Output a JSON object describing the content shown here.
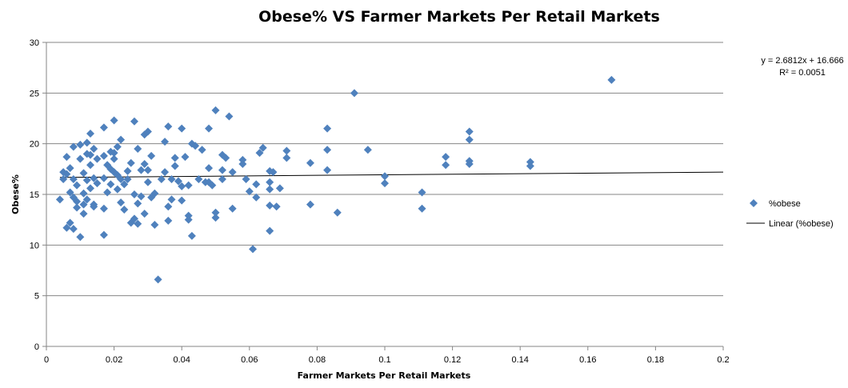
{
  "chart_data": {
    "type": "scatter",
    "title": "Obese% VS Farmer Markets Per Retail Markets",
    "xlabel": "Farmer Markets Per Retail Markets",
    "ylabel": "Obese%",
    "xlim": [
      0,
      0.2
    ],
    "ylim": [
      0,
      30
    ],
    "x_ticks": [
      "0",
      "0.02",
      "0.04",
      "0.06",
      "0.08",
      "0.1",
      "0.12",
      "0.14",
      "0.16",
      "0.18",
      "0.2"
    ],
    "y_ticks": [
      "0",
      "5",
      "10",
      "15",
      "20",
      "25",
      "30"
    ],
    "grid": "horizontal",
    "legend_position": "right",
    "marker_color": "#4F81BD",
    "trendline_color": "#000000",
    "trendline": {
      "name": "Linear (%obese)",
      "slope": 2.6812,
      "intercept": 16.666,
      "equation": "y = 2.6812x + 16.666",
      "r2": "R² = 0.0051"
    },
    "series": [
      {
        "name": "%obese",
        "points": [
          [
            0.004,
            14.5
          ],
          [
            0.005,
            16.5
          ],
          [
            0.005,
            17.2
          ],
          [
            0.006,
            18.7
          ],
          [
            0.006,
            11.7
          ],
          [
            0.006,
            17.0
          ],
          [
            0.007,
            17.6
          ],
          [
            0.007,
            15.2
          ],
          [
            0.007,
            12.2
          ],
          [
            0.008,
            11.6
          ],
          [
            0.008,
            14.7
          ],
          [
            0.008,
            19.7
          ],
          [
            0.008,
            16.5
          ],
          [
            0.009,
            15.9
          ],
          [
            0.009,
            14.3
          ],
          [
            0.009,
            13.7
          ],
          [
            0.01,
            10.8
          ],
          [
            0.01,
            18.5
          ],
          [
            0.01,
            19.9
          ],
          [
            0.011,
            13.1
          ],
          [
            0.011,
            14.0
          ],
          [
            0.011,
            15.1
          ],
          [
            0.011,
            17.1
          ],
          [
            0.012,
            20.1
          ],
          [
            0.012,
            19.0
          ],
          [
            0.012,
            16.4
          ],
          [
            0.012,
            14.5
          ],
          [
            0.013,
            18.9
          ],
          [
            0.013,
            15.6
          ],
          [
            0.013,
            17.9
          ],
          [
            0.013,
            21.0
          ],
          [
            0.014,
            19.5
          ],
          [
            0.014,
            16.6
          ],
          [
            0.014,
            14.0
          ],
          [
            0.014,
            13.8
          ],
          [
            0.015,
            18.5
          ],
          [
            0.015,
            16.1
          ],
          [
            0.017,
            21.6
          ],
          [
            0.017,
            18.8
          ],
          [
            0.017,
            16.6
          ],
          [
            0.017,
            13.6
          ],
          [
            0.017,
            11.0
          ],
          [
            0.018,
            17.9
          ],
          [
            0.018,
            15.2
          ],
          [
            0.019,
            19.2
          ],
          [
            0.019,
            17.5
          ],
          [
            0.019,
            16.0
          ],
          [
            0.02,
            22.3
          ],
          [
            0.02,
            19.1
          ],
          [
            0.02,
            18.5
          ],
          [
            0.02,
            17.2
          ],
          [
            0.021,
            16.9
          ],
          [
            0.021,
            15.5
          ],
          [
            0.021,
            19.7
          ],
          [
            0.022,
            20.4
          ],
          [
            0.022,
            16.5
          ],
          [
            0.022,
            14.2
          ],
          [
            0.023,
            13.5
          ],
          [
            0.023,
            16.0
          ],
          [
            0.024,
            17.3
          ],
          [
            0.024,
            16.5
          ],
          [
            0.025,
            18.1
          ],
          [
            0.025,
            12.2
          ],
          [
            0.026,
            22.2
          ],
          [
            0.026,
            15.0
          ],
          [
            0.026,
            12.6
          ],
          [
            0.027,
            19.5
          ],
          [
            0.027,
            14.1
          ],
          [
            0.027,
            12.1
          ],
          [
            0.028,
            17.4
          ],
          [
            0.028,
            14.8
          ],
          [
            0.029,
            18.0
          ],
          [
            0.029,
            20.9
          ],
          [
            0.029,
            13.1
          ],
          [
            0.03,
            21.2
          ],
          [
            0.03,
            17.4
          ],
          [
            0.03,
            16.2
          ],
          [
            0.031,
            18.8
          ],
          [
            0.031,
            14.7
          ],
          [
            0.032,
            12.0
          ],
          [
            0.032,
            15.1
          ],
          [
            0.033,
            6.6
          ],
          [
            0.034,
            16.5
          ],
          [
            0.035,
            20.2
          ],
          [
            0.035,
            17.2
          ],
          [
            0.036,
            21.7
          ],
          [
            0.036,
            13.8
          ],
          [
            0.036,
            12.4
          ],
          [
            0.037,
            16.5
          ],
          [
            0.037,
            14.5
          ],
          [
            0.038,
            18.6
          ],
          [
            0.038,
            17.8
          ],
          [
            0.039,
            16.3
          ],
          [
            0.04,
            21.5
          ],
          [
            0.04,
            15.8
          ],
          [
            0.04,
            14.4
          ],
          [
            0.041,
            18.7
          ],
          [
            0.042,
            12.9
          ],
          [
            0.042,
            12.5
          ],
          [
            0.042,
            15.9
          ],
          [
            0.043,
            10.9
          ],
          [
            0.043,
            20.0
          ],
          [
            0.044,
            19.8
          ],
          [
            0.045,
            16.5
          ],
          [
            0.046,
            19.4
          ],
          [
            0.047,
            16.2
          ],
          [
            0.048,
            21.5
          ],
          [
            0.048,
            17.6
          ],
          [
            0.048,
            16.2
          ],
          [
            0.049,
            15.9
          ],
          [
            0.05,
            23.3
          ],
          [
            0.05,
            12.7
          ],
          [
            0.05,
            13.2
          ],
          [
            0.052,
            17.4
          ],
          [
            0.052,
            16.5
          ],
          [
            0.052,
            18.9
          ],
          [
            0.053,
            18.6
          ],
          [
            0.054,
            22.7
          ],
          [
            0.055,
            17.2
          ],
          [
            0.055,
            13.6
          ],
          [
            0.058,
            18.0
          ],
          [
            0.058,
            18.4
          ],
          [
            0.059,
            16.5
          ],
          [
            0.06,
            15.3
          ],
          [
            0.061,
            9.6
          ],
          [
            0.062,
            16.0
          ],
          [
            0.062,
            14.7
          ],
          [
            0.063,
            19.1
          ],
          [
            0.064,
            19.6
          ],
          [
            0.066,
            17.3
          ],
          [
            0.066,
            16.2
          ],
          [
            0.066,
            15.5
          ],
          [
            0.066,
            13.9
          ],
          [
            0.066,
            11.4
          ],
          [
            0.067,
            17.2
          ],
          [
            0.068,
            13.8
          ],
          [
            0.069,
            15.6
          ],
          [
            0.071,
            19.3
          ],
          [
            0.071,
            18.6
          ],
          [
            0.078,
            18.1
          ],
          [
            0.078,
            14.0
          ],
          [
            0.083,
            21.5
          ],
          [
            0.083,
            19.4
          ],
          [
            0.083,
            17.4
          ],
          [
            0.086,
            13.2
          ],
          [
            0.091,
            25.0
          ],
          [
            0.095,
            19.4
          ],
          [
            0.1,
            16.8
          ],
          [
            0.1,
            16.1
          ],
          [
            0.111,
            15.2
          ],
          [
            0.111,
            13.6
          ],
          [
            0.118,
            17.9
          ],
          [
            0.118,
            18.7
          ],
          [
            0.125,
            21.2
          ],
          [
            0.125,
            20.4
          ],
          [
            0.125,
            18.3
          ],
          [
            0.125,
            18.0
          ],
          [
            0.143,
            18.2
          ],
          [
            0.143,
            17.8
          ],
          [
            0.167,
            26.3
          ]
        ]
      }
    ]
  }
}
